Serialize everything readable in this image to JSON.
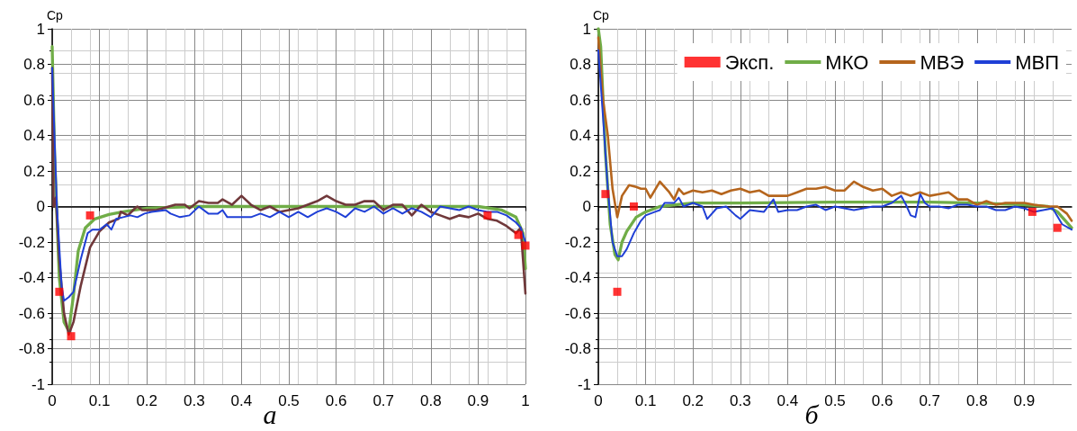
{
  "chart_data": [
    {
      "type": "line",
      "ylabel": "Cp",
      "annotations": [
        "а"
      ],
      "xlim": [
        0,
        1
      ],
      "ylim": [
        -1,
        1
      ],
      "xticks": [
        0,
        0.1,
        0.2,
        0.3,
        0.4,
        0.5,
        0.6,
        0.7,
        0.8,
        0.9,
        1
      ],
      "yticks": [
        -1,
        -0.8,
        -0.6,
        -0.4,
        -0.2,
        0,
        0.2,
        0.4,
        0.6,
        0.8,
        1
      ],
      "grid": true,
      "legend": false,
      "marker": "none",
      "line_style": "solid",
      "series": [
        {
          "type": "scatter",
          "marker": "square",
          "color": "#ff0000",
          "x": [
            0.015,
            0.04,
            0.08,
            0.92,
            0.985,
            1.0
          ],
          "values": [
            -0.48,
            -0.73,
            -0.05,
            -0.05,
            -0.16,
            -0.22
          ]
        },
        {
          "color": "#70ad47",
          "x": [
            0,
            0.005,
            0.015,
            0.025,
            0.035,
            0.045,
            0.055,
            0.07,
            0.09,
            0.12,
            0.15,
            0.2,
            0.3,
            0.9,
            0.95,
            0.98,
            0.995,
            1.0
          ],
          "values": [
            0.9,
            0.3,
            -0.4,
            -0.65,
            -0.7,
            -0.5,
            -0.25,
            -0.12,
            -0.07,
            -0.045,
            -0.03,
            -0.01,
            0,
            0,
            -0.02,
            -0.06,
            -0.15,
            -0.35
          ]
        },
        {
          "color": "#70383a",
          "x": [
            0,
            0.003,
            0.008,
            0.015,
            0.025,
            0.035,
            0.045,
            0.06,
            0.08,
            0.1,
            0.12,
            0.14,
            0.145,
            0.16,
            0.175,
            0.18,
            0.19,
            0.22,
            0.26,
            0.28,
            0.29,
            0.31,
            0.33,
            0.35,
            0.36,
            0.38,
            0.4,
            0.42,
            0.44,
            0.46,
            0.48,
            0.5,
            0.52,
            0.54,
            0.56,
            0.58,
            0.6,
            0.62,
            0.64,
            0.66,
            0.68,
            0.7,
            0.72,
            0.74,
            0.76,
            0.78,
            0.8,
            0.82,
            0.84,
            0.86,
            0.88,
            0.9,
            0.92,
            0.94,
            0.96,
            0.98,
            0.99,
            1.0
          ],
          "values": [
            0.78,
            0,
            0.05,
            -0.3,
            -0.6,
            -0.72,
            -0.65,
            -0.45,
            -0.23,
            -0.14,
            -0.09,
            -0.07,
            -0.03,
            -0.05,
            -0.01,
            0,
            -0.02,
            -0.02,
            0.01,
            0.01,
            -0.01,
            0.03,
            0.02,
            0.02,
            0.04,
            0.01,
            0.06,
            0.01,
            -0.02,
            0,
            -0.03,
            -0.02,
            -0.01,
            0.01,
            0.03,
            0.06,
            0.03,
            0.01,
            0.01,
            0.03,
            0.03,
            -0.02,
            0.01,
            0.01,
            -0.05,
            0.01,
            -0.03,
            -0.05,
            -0.07,
            -0.05,
            -0.06,
            -0.04,
            -0.07,
            -0.08,
            -0.11,
            -0.15,
            -0.12,
            -0.49
          ]
        },
        {
          "color": "#1f3fd6",
          "x": [
            0,
            0.01,
            0.02,
            0.025,
            0.035,
            0.045,
            0.06,
            0.075,
            0.085,
            0.1,
            0.115,
            0.125,
            0.135,
            0.15,
            0.165,
            0.18,
            0.195,
            0.21,
            0.24,
            0.25,
            0.27,
            0.29,
            0.31,
            0.33,
            0.35,
            0.36,
            0.37,
            0.39,
            0.42,
            0.44,
            0.46,
            0.48,
            0.5,
            0.52,
            0.54,
            0.56,
            0.58,
            0.6,
            0.62,
            0.64,
            0.66,
            0.68,
            0.7,
            0.72,
            0.74,
            0.76,
            0.78,
            0.8,
            0.82,
            0.84,
            0.86,
            0.88,
            0.9,
            0.92,
            0.94,
            0.96,
            0.98,
            0.99,
            1.0
          ],
          "values": [
            0.78,
            0,
            -0.45,
            -0.53,
            -0.51,
            -0.48,
            -0.3,
            -0.15,
            -0.13,
            -0.13,
            -0.1,
            -0.13,
            -0.07,
            -0.06,
            -0.05,
            -0.06,
            -0.04,
            -0.03,
            -0.02,
            -0.04,
            -0.06,
            -0.05,
            0,
            -0.04,
            -0.04,
            -0.02,
            -0.06,
            -0.06,
            -0.06,
            -0.04,
            -0.06,
            -0.03,
            -0.06,
            -0.03,
            -0.06,
            -0.03,
            -0.01,
            -0.03,
            -0.06,
            -0.01,
            -0.03,
            0,
            -0.04,
            -0.01,
            -0.04,
            -0.01,
            -0.03,
            -0.06,
            0,
            -0.01,
            -0.02,
            0,
            -0.02,
            -0.03,
            -0.03,
            -0.05,
            -0.09,
            -0.12,
            -0.2
          ]
        }
      ]
    },
    {
      "type": "line",
      "ylabel": "Cp",
      "annotations": [
        "б"
      ],
      "xlim": [
        0,
        1
      ],
      "ylim": [
        -1,
        1
      ],
      "xticks": [
        0,
        0.1,
        0.2,
        0.3,
        0.4,
        0.5,
        0.6,
        0.7,
        0.8,
        0.9
      ],
      "yticks": [
        -1,
        -0.8,
        -0.6,
        -0.4,
        -0.2,
        0,
        0.2,
        0.4,
        0.6,
        0.8,
        1
      ],
      "grid": true,
      "legend": "top right",
      "marker": "none",
      "line_style": "solid",
      "series": [
        {
          "name": "Эксп.",
          "type": "scatter",
          "marker": "square",
          "color": "#ff0000",
          "x": [
            0.015,
            0.04,
            0.075,
            0.917,
            0.97
          ],
          "values": [
            0.07,
            -0.48,
            0,
            -0.03,
            -0.12
          ]
        },
        {
          "name": "МКО",
          "color": "#70ad47",
          "x": [
            0,
            0.005,
            0.015,
            0.025,
            0.035,
            0.042,
            0.05,
            0.06,
            0.08,
            0.1,
            0.13,
            0.2,
            0.3,
            0.5,
            0.7,
            0.8,
            0.9,
            0.95,
            0.97,
            1.0
          ],
          "values": [
            1.0,
            0.9,
            0.3,
            -0.1,
            -0.27,
            -0.3,
            -0.2,
            -0.14,
            -0.06,
            -0.03,
            0,
            0.02,
            0.02,
            0.025,
            0.025,
            0.02,
            0.01,
            0,
            -0.03,
            -0.12
          ]
        },
        {
          "name": "МВЭ",
          "color": "#b5651d",
          "x": [
            0,
            0.01,
            0.02,
            0.03,
            0.04,
            0.05,
            0.065,
            0.08,
            0.09,
            0.1,
            0.11,
            0.13,
            0.15,
            0.16,
            0.17,
            0.18,
            0.2,
            0.22,
            0.24,
            0.26,
            0.28,
            0.3,
            0.32,
            0.34,
            0.36,
            0.4,
            0.42,
            0.44,
            0.46,
            0.48,
            0.5,
            0.52,
            0.54,
            0.56,
            0.58,
            0.6,
            0.62,
            0.64,
            0.66,
            0.68,
            0.7,
            0.72,
            0.74,
            0.76,
            0.78,
            0.8,
            0.82,
            0.84,
            0.86,
            0.88,
            0.9,
            0.92,
            0.95,
            0.97,
            0.99,
            1.0
          ],
          "values": [
            0.95,
            0.6,
            0.4,
            0.1,
            -0.06,
            0.06,
            0.12,
            0.11,
            0.1,
            0.1,
            0.05,
            0.14,
            0.08,
            0.04,
            0.1,
            0.07,
            0.09,
            0.08,
            0.09,
            0.07,
            0.09,
            0.1,
            0.08,
            0.09,
            0.06,
            0.06,
            0.08,
            0.1,
            0.1,
            0.11,
            0.09,
            0.09,
            0.14,
            0.11,
            0.09,
            0.1,
            0.06,
            0.08,
            0.06,
            0.08,
            0.06,
            0.07,
            0.08,
            0.04,
            0.04,
            0.01,
            0.03,
            0.01,
            0.02,
            0.02,
            0.02,
            0.01,
            0,
            0,
            -0.04,
            -0.08
          ]
        },
        {
          "name": "МВП",
          "color": "#1f3fd6",
          "x": [
            0,
            0.01,
            0.02,
            0.03,
            0.04,
            0.05,
            0.06,
            0.075,
            0.09,
            0.1,
            0.12,
            0.13,
            0.14,
            0.16,
            0.17,
            0.18,
            0.2,
            0.22,
            0.23,
            0.25,
            0.27,
            0.29,
            0.3,
            0.32,
            0.35,
            0.37,
            0.38,
            0.4,
            0.42,
            0.44,
            0.46,
            0.48,
            0.5,
            0.52,
            0.54,
            0.56,
            0.58,
            0.6,
            0.62,
            0.64,
            0.65,
            0.66,
            0.67,
            0.68,
            0.69,
            0.7,
            0.72,
            0.74,
            0.76,
            0.78,
            0.8,
            0.82,
            0.84,
            0.86,
            0.88,
            0.9,
            0.92,
            0.96,
            0.98,
            1.0
          ],
          "values": [
            0.88,
            0.5,
            0.1,
            -0.2,
            -0.28,
            -0.28,
            -0.24,
            -0.15,
            -0.08,
            -0.05,
            -0.03,
            -0.02,
            0.02,
            0.02,
            0.05,
            0,
            0.02,
            0,
            -0.07,
            -0.01,
            0,
            -0.05,
            -0.07,
            -0.02,
            -0.03,
            0.04,
            -0.03,
            -0.02,
            -0.02,
            0,
            0.01,
            -0.02,
            0,
            -0.01,
            -0.02,
            -0.01,
            0,
            0,
            0.02,
            0.06,
            0.01,
            -0.05,
            -0.06,
            0.07,
            0.02,
            0,
            0,
            -0.01,
            0.01,
            0.01,
            0,
            0,
            -0.02,
            -0.02,
            0,
            -0.01,
            -0.03,
            -0.01,
            -0.1,
            -0.13
          ]
        }
      ]
    }
  ]
}
